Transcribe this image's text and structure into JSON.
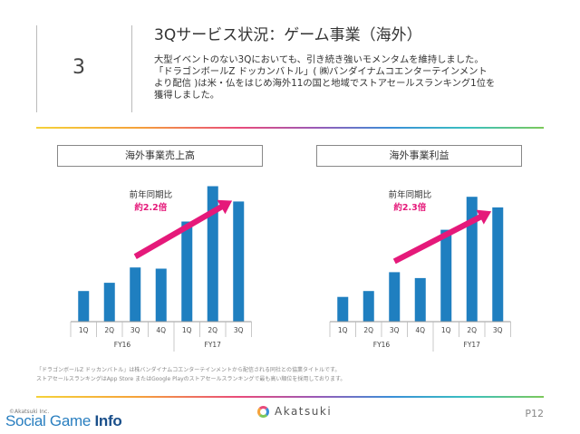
{
  "section": {
    "number": "3"
  },
  "headline": "3Qサービス状況：ゲーム事業（海外）",
  "description": [
    "大型イベントのない3Qにおいても、引き続き強いモメンタムを維持しました。",
    "「ドラゴンボールZ ドッカンバトル」( ㈱バンダイナムコエンターテインメント",
    "より配信 )は米・仏をはじめ海外11の国と地域でストアセールスランキング1位を",
    "獲得しました。"
  ],
  "chart_data": [
    {
      "type": "bar",
      "title": "海外事業売上高",
      "categories": [
        "1Q",
        "2Q",
        "3Q",
        "4Q",
        "1Q",
        "2Q",
        "3Q"
      ],
      "groups": [
        {
          "label": "FY16",
          "span": 4
        },
        {
          "label": "FY17",
          "span": 3
        }
      ],
      "values": [
        26,
        33,
        46,
        45,
        85,
        115,
        102
      ],
      "annotation": {
        "label": "前年同期比",
        "value": "約2.2倍"
      },
      "ylim": [
        0,
        120
      ]
    },
    {
      "type": "bar",
      "title": "海外事業利益",
      "categories": [
        "1Q",
        "2Q",
        "3Q",
        "4Q",
        "1Q",
        "2Q",
        "3Q"
      ],
      "groups": [
        {
          "label": "FY16",
          "span": 4
        },
        {
          "label": "FY17",
          "span": 3
        }
      ],
      "values": [
        21,
        26,
        42,
        37,
        78,
        106,
        97
      ],
      "annotation": {
        "label": "前年同期比",
        "value": "約2.3倍"
      },
      "ylim": [
        0,
        120
      ]
    }
  ],
  "colors": {
    "bar": "#1f7fc0",
    "arrow": "#e5197a",
    "annotation_value": "#e5197a"
  },
  "footnotes": [
    "「ドラゴンボールZ ドッカンバトル」は株バンダイナムコエンターテインメントから配信される同社との協業タイトルです。",
    "ストアセールスランキングはApp Store またはGoogle Playのストアセールスランキングで最も高い順位を採用しております。"
  ],
  "footer": {
    "copyright": "©Akatsuki Inc.",
    "brand_prefix": "Social Game ",
    "brand_suffix": "Info",
    "logo_text": "Akatsuki",
    "logo_icon": "akatsuki-ring-icon",
    "page": "P12"
  }
}
